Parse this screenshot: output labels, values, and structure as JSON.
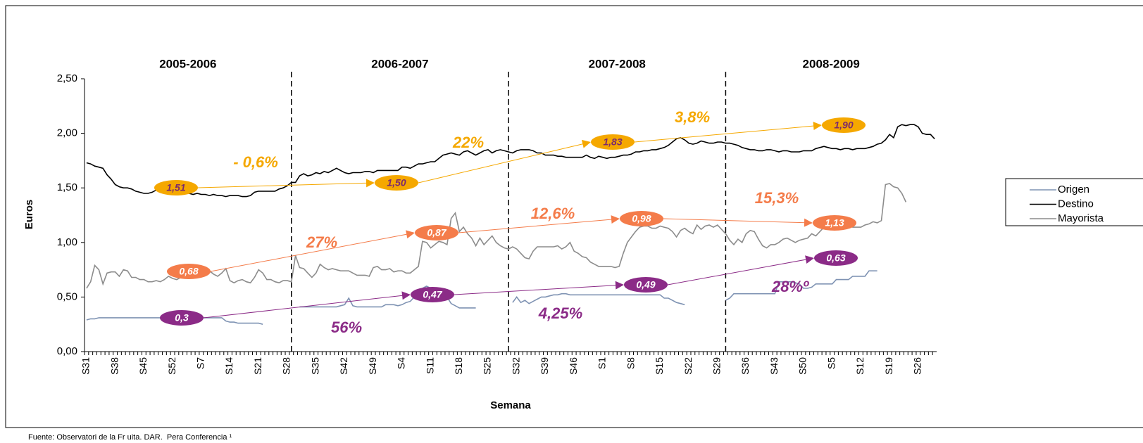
{
  "chart_data": {
    "type": "line",
    "y_label": "Euros",
    "x_label": "Semana",
    "source": "Fuente: Observatori de la Fr uita. DAR.  Pera Conferencia ¹",
    "seasons": [
      "2005-2006",
      "2006-2007",
      "2007-2008",
      "2008-2009"
    ],
    "ylim": [
      0,
      2.5
    ],
    "yticks": [
      {
        "value": 0,
        "label": "0,00"
      },
      {
        "value": 0.5,
        "label": "0,50"
      },
      {
        "value": 1,
        "label": "1,00"
      },
      {
        "value": 1.5,
        "label": "1,50"
      },
      {
        "value": 2,
        "label": "2,00"
      },
      {
        "value": 2.5,
        "label": "2,50"
      }
    ],
    "categories": [
      "S31",
      null,
      null,
      null,
      null,
      null,
      null,
      "S38",
      null,
      null,
      null,
      null,
      null,
      null,
      "S45",
      null,
      null,
      null,
      null,
      null,
      null,
      "S52",
      null,
      null,
      null,
      null,
      null,
      null,
      "S7",
      null,
      null,
      null,
      null,
      null,
      null,
      "S14",
      null,
      null,
      null,
      null,
      null,
      null,
      "S21",
      null,
      null,
      null,
      null,
      null,
      null,
      "S28",
      null,
      null,
      null,
      null,
      null,
      null,
      "S35",
      null,
      null,
      null,
      null,
      null,
      null,
      "S42",
      null,
      null,
      null,
      null,
      null,
      null,
      "S49",
      null,
      null,
      null,
      null,
      null,
      null,
      "S4",
      null,
      null,
      null,
      null,
      null,
      null,
      "S11",
      null,
      null,
      null,
      null,
      null,
      null,
      "S18",
      null,
      null,
      null,
      null,
      null,
      null,
      "S25",
      null,
      null,
      null,
      null,
      null,
      null,
      "S32",
      null,
      null,
      null,
      null,
      null,
      null,
      "S39",
      null,
      null,
      null,
      null,
      null,
      null,
      "S46",
      null,
      null,
      null,
      null,
      null,
      null,
      "S1",
      null,
      null,
      null,
      null,
      null,
      null,
      "S8",
      null,
      null,
      null,
      null,
      null,
      null,
      "S15",
      null,
      null,
      null,
      null,
      null,
      null,
      "S22",
      null,
      null,
      null,
      null,
      null,
      null,
      "S29",
      null,
      null,
      null,
      null,
      null,
      null,
      "S36",
      null,
      null,
      null,
      null,
      null,
      null,
      "S43",
      null,
      null,
      null,
      null,
      null,
      null,
      "S50",
      null,
      null,
      null,
      null,
      null,
      null,
      "S5",
      null,
      null,
      null,
      null,
      null,
      null,
      "S12",
      null,
      null,
      null,
      null,
      null,
      null,
      "S19",
      null,
      null,
      null,
      null,
      null,
      null,
      "S26",
      null,
      null,
      null,
      null
    ],
    "series": [
      {
        "name": "Origen",
        "color": "#7f93b3",
        "values": [
          0.29,
          0.3,
          0.3,
          0.31,
          0.31,
          0.31,
          0.31,
          0.31,
          0.31,
          0.31,
          0.31,
          0.31,
          0.31,
          0.31,
          0.31,
          0.31,
          0.31,
          0.31,
          0.31,
          0.31,
          0.31,
          0.31,
          0.31,
          0.31,
          0.31,
          0.31,
          0.31,
          0.31,
          0.31,
          0.31,
          0.31,
          0.31,
          0.31,
          0.31,
          0.28,
          0.27,
          0.27,
          0.26,
          0.26,
          0.26,
          0.26,
          0.26,
          0.26,
          0.25,
          null,
          null,
          null,
          null,
          null,
          null,
          null,
          null,
          0.41,
          0.41,
          0.41,
          0.41,
          0.41,
          0.41,
          0.41,
          0.41,
          0.41,
          0.41,
          0.42,
          0.43,
          0.49,
          0.42,
          0.41,
          0.41,
          0.41,
          0.41,
          0.41,
          0.41,
          0.41,
          0.43,
          0.43,
          0.43,
          0.42,
          0.43,
          0.45,
          0.46,
          0.5,
          0.52,
          0.58,
          0.6,
          0.58,
          0.56,
          0.55,
          0.57,
          0.5,
          0.44,
          0.42,
          0.4,
          0.4,
          0.4,
          0.4,
          0.4,
          null,
          null,
          null,
          null,
          null,
          null,
          null,
          null,
          0.45,
          0.5,
          0.45,
          0.47,
          0.44,
          0.46,
          0.48,
          0.5,
          0.5,
          0.51,
          0.52,
          0.52,
          0.53,
          0.53,
          0.52,
          0.52,
          0.52,
          0.52,
          0.52,
          0.52,
          0.52,
          0.52,
          0.52,
          0.52,
          0.52,
          0.52,
          0.52,
          0.52,
          0.52,
          0.52,
          0.52,
          0.52,
          0.52,
          0.52,
          0.52,
          0.52,
          0.52,
          0.49,
          0.49,
          0.47,
          0.45,
          0.44,
          0.43,
          null,
          null,
          null,
          null,
          null,
          null,
          null,
          null,
          null,
          0.47,
          0.49,
          0.53,
          0.53,
          0.53,
          0.53,
          0.53,
          0.53,
          0.53,
          0.53,
          0.53,
          0.53,
          0.53,
          0.64,
          0.64,
          0.64,
          0.64,
          0.63,
          0.62,
          0.58,
          0.58,
          0.59,
          0.62,
          0.62,
          0.62,
          0.62,
          0.62,
          0.66,
          0.66,
          0.66,
          0.66,
          0.69,
          0.69,
          0.69,
          0.69,
          0.74,
          0.74,
          0.74,
          null,
          null,
          null,
          null,
          null,
          null,
          null,
          null,
          null,
          null,
          null,
          null,
          null,
          null
        ]
      },
      {
        "name": "Destino",
        "color": "#000000",
        "values": [
          1.73,
          1.72,
          1.7,
          1.69,
          1.68,
          1.62,
          1.58,
          1.53,
          1.51,
          1.5,
          1.5,
          1.49,
          1.47,
          1.46,
          1.45,
          1.45,
          1.46,
          1.48,
          1.5,
          1.5,
          1.5,
          1.48,
          1.47,
          1.46,
          1.46,
          1.45,
          1.44,
          1.45,
          1.44,
          1.44,
          1.43,
          1.44,
          1.43,
          1.43,
          1.42,
          1.43,
          1.43,
          1.43,
          1.42,
          1.42,
          1.43,
          1.46,
          1.47,
          1.47,
          1.47,
          1.47,
          1.47,
          1.49,
          1.5,
          1.52,
          1.55,
          1.55,
          1.61,
          1.63,
          1.61,
          1.62,
          1.64,
          1.63,
          1.65,
          1.64,
          1.66,
          1.68,
          1.66,
          1.64,
          1.63,
          1.64,
          1.64,
          1.64,
          1.65,
          1.65,
          1.64,
          1.66,
          1.66,
          1.66,
          1.66,
          1.66,
          1.66,
          1.69,
          1.69,
          1.68,
          1.7,
          1.72,
          1.72,
          1.73,
          1.74,
          1.74,
          1.77,
          1.8,
          1.81,
          1.82,
          1.81,
          1.8,
          1.83,
          1.84,
          1.82,
          1.8,
          1.82,
          1.84,
          1.85,
          1.82,
          1.84,
          1.85,
          1.84,
          1.83,
          1.82,
          1.84,
          1.85,
          1.85,
          1.85,
          1.84,
          1.82,
          1.82,
          1.8,
          1.8,
          1.8,
          1.79,
          1.79,
          1.78,
          1.78,
          1.78,
          1.78,
          1.78,
          1.8,
          1.78,
          1.77,
          1.79,
          1.78,
          1.77,
          1.78,
          1.78,
          1.79,
          1.8,
          1.8,
          1.81,
          1.83,
          1.83,
          1.84,
          1.84,
          1.85,
          1.85,
          1.86,
          1.87,
          1.89,
          1.92,
          1.95,
          1.96,
          1.94,
          1.91,
          1.9,
          1.91,
          1.93,
          1.92,
          1.91,
          1.91,
          1.92,
          1.92,
          1.91,
          1.91,
          1.9,
          1.89,
          1.87,
          1.86,
          1.85,
          1.85,
          1.84,
          1.84,
          1.85,
          1.85,
          1.84,
          1.83,
          1.84,
          1.84,
          1.83,
          1.83,
          1.83,
          1.84,
          1.84,
          1.84,
          1.86,
          1.87,
          1.88,
          1.87,
          1.86,
          1.86,
          1.85,
          1.86,
          1.86,
          1.85,
          1.86,
          1.86,
          1.86,
          1.87,
          1.88,
          1.9,
          1.91,
          1.94,
          1.99,
          1.96,
          2.06,
          2.08,
          2.07,
          2.08,
          2.08,
          2.06,
          2.0,
          1.99,
          1.99,
          1.95
        ]
      },
      {
        "name": "Mayorista",
        "color": "#8c8c8c",
        "values": [
          0.58,
          0.64,
          0.79,
          0.75,
          0.62,
          0.72,
          0.73,
          0.73,
          0.69,
          0.75,
          0.74,
          0.68,
          0.68,
          0.66,
          0.66,
          0.64,
          0.64,
          0.65,
          0.64,
          0.66,
          0.69,
          0.67,
          0.66,
          0.68,
          0.7,
          0.69,
          0.74,
          0.71,
          0.7,
          0.74,
          0.74,
          0.71,
          0.69,
          0.72,
          0.76,
          0.65,
          0.63,
          0.65,
          0.66,
          0.64,
          0.63,
          0.68,
          0.75,
          0.72,
          0.66,
          0.66,
          0.64,
          0.63,
          0.65,
          0.65,
          0.64,
          0.88,
          0.77,
          0.76,
          0.72,
          0.68,
          0.72,
          0.8,
          0.77,
          0.75,
          0.76,
          0.75,
          0.74,
          0.74,
          0.74,
          0.72,
          0.7,
          0.7,
          0.7,
          0.69,
          0.77,
          0.78,
          0.75,
          0.75,
          0.76,
          0.73,
          0.74,
          0.74,
          0.72,
          0.72,
          0.75,
          0.78,
          1.01,
          1.0,
          0.95,
          0.98,
          1.01,
          1.0,
          0.98,
          1.22,
          1.27,
          1.1,
          1.14,
          1.08,
          1.04,
          0.97,
          1.04,
          0.98,
          1.02,
          1.06,
          1.0,
          0.97,
          0.95,
          0.94,
          0.96,
          0.94,
          0.9,
          0.86,
          0.85,
          0.92,
          0.96,
          0.96,
          0.96,
          0.96,
          0.96,
          0.97,
          0.94,
          0.96,
          1.0,
          0.92,
          0.9,
          0.87,
          0.86,
          0.82,
          0.8,
          0.78,
          0.78,
          0.78,
          0.78,
          0.77,
          0.78,
          0.9,
          1.0,
          1.05,
          1.1,
          1.14,
          1.15,
          1.15,
          1.13,
          1.13,
          1.15,
          1.14,
          1.13,
          1.1,
          1.05,
          1.11,
          1.13,
          1.1,
          1.08,
          1.16,
          1.12,
          1.15,
          1.16,
          1.14,
          1.16,
          1.12,
          1.08,
          1.02,
          0.98,
          1.03,
          1.0,
          1.08,
          1.11,
          1.1,
          1.03,
          0.97,
          0.95,
          0.98,
          0.98,
          1.0,
          1.03,
          1.04,
          1.02,
          1.0,
          1.02,
          1.03,
          1.04,
          1.08,
          1.06,
          1.1,
          1.14,
          1.13,
          1.16,
          1.16,
          1.15,
          1.18,
          1.16,
          1.14,
          1.14,
          1.14,
          1.16,
          1.17,
          1.19,
          1.18,
          1.2,
          1.53,
          1.54,
          1.51,
          1.5,
          1.45,
          1.37,
          null,
          null,
          null,
          null,
          null,
          null,
          null
        ]
      }
    ],
    "trends": [
      {
        "color": "#f5a800",
        "label_color": "#7b2a6e",
        "points": [
          {
            "value": 1.51,
            "label": "1,51"
          },
          {
            "value": 1.5,
            "label": "1,50"
          },
          {
            "value": 1.83,
            "label": "1,83"
          },
          {
            "value": 1.9,
            "label": "1,90"
          }
        ],
        "changes": [
          "- 0,6%",
          "22%",
          "3,8%"
        ]
      },
      {
        "color": "#f47c4a",
        "label_color": "#ffffff",
        "points": [
          {
            "value": 0.68,
            "label": "0,68"
          },
          {
            "value": 0.87,
            "label": "0,87"
          },
          {
            "value": 0.98,
            "label": "0,98"
          },
          {
            "value": 1.13,
            "label": "1,13"
          }
        ],
        "changes": [
          "27%",
          "12,6%",
          "15,3%"
        ]
      },
      {
        "color": "#8b2b87",
        "label_color": "#ffffff",
        "points": [
          {
            "value": 0.3,
            "label": "0,3"
          },
          {
            "value": 0.47,
            "label": "0,47"
          },
          {
            "value": 0.49,
            "label": "0,49"
          },
          {
            "value": 0.63,
            "label": "0,63"
          }
        ],
        "changes": [
          "56%",
          "4,25%",
          "28%º"
        ]
      }
    ]
  }
}
